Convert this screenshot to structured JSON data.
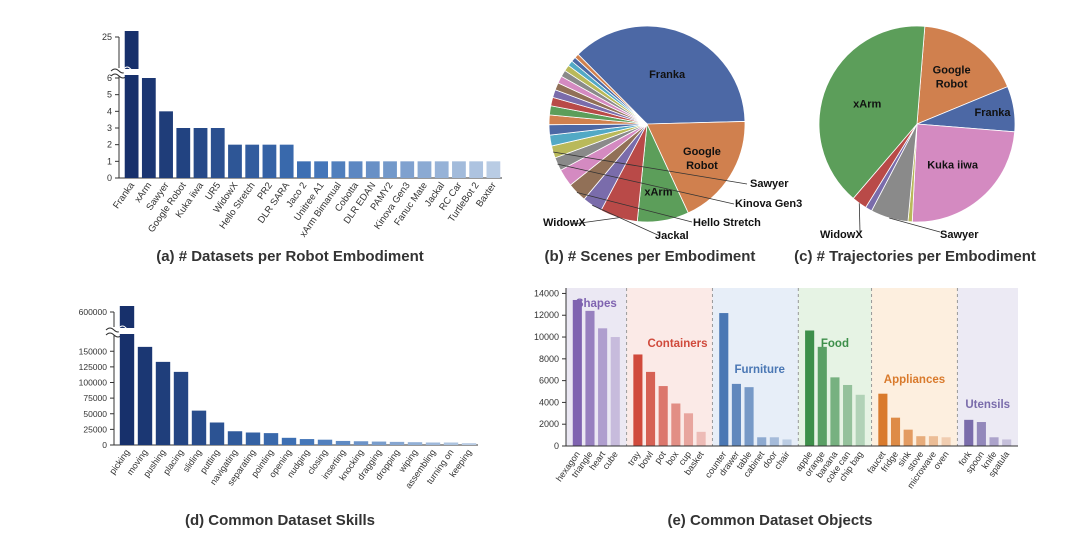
{
  "chart_data": [
    {
      "id": "a",
      "type": "bar",
      "title": "(a) # Datasets per Robot Embodiment",
      "categories": [
        "Franka",
        "xArm",
        "Sawyer",
        "Google Robot",
        "Kuka iiwa",
        "UR5",
        "WidowX",
        "Hello Stretch",
        "PR2",
        "DLR SARA",
        "Jaco 2",
        "Unitree A1",
        "xArm Bimanual",
        "Cobotta",
        "DLR EDAN",
        "PAMY2",
        "Kinova Gen3",
        "Fanuc Mate",
        "Jackal",
        "RC Car",
        "TurtleBot 2",
        "Baxter"
      ],
      "values": [
        25,
        6,
        4,
        3,
        3,
        3,
        2,
        2,
        2,
        2,
        1,
        1,
        1,
        1,
        1,
        1,
        1,
        1,
        1,
        1,
        1,
        1
      ],
      "yticks": [
        "0",
        "1",
        "2",
        "3",
        "4",
        "5",
        "6",
        "25"
      ],
      "axis_break": {
        "lower_max": 6,
        "upper_tick": 25
      },
      "ylim": [
        0,
        25
      ]
    },
    {
      "id": "b",
      "type": "pie",
      "title": "(b) # Scenes per Embodiment",
      "slices": [
        {
          "label": "Franka",
          "value": 37,
          "color": "#4c68a5",
          "labeled": true
        },
        {
          "label": "Google Robot",
          "value": 18.5,
          "color": "#d0804e",
          "labeled": true
        },
        {
          "label": "xArm",
          "value": 8.5,
          "color": "#5c9e5a",
          "labeled": true
        },
        {
          "label": "WidowX",
          "value": 6.2,
          "color": "#b94a48",
          "labeled": true
        },
        {
          "label": "Jackal",
          "value": 3.3,
          "color": "#7a6cab",
          "labeled": true
        },
        {
          "label": "Hello Stretch",
          "value": 3.2,
          "color": "#917057",
          "labeled": true
        },
        {
          "label": "",
          "value": 2.9,
          "color": "#d48ac1",
          "labeled": false
        },
        {
          "label": "Kinova Gen3",
          "value": 2.2,
          "color": "#8a8a8a",
          "labeled": true
        },
        {
          "label": "Sawyer",
          "value": 2.0,
          "color": "#b9b95a",
          "labeled": true
        },
        {
          "label": "",
          "value": 1.8,
          "color": "#52a9c5",
          "labeled": false
        },
        {
          "label": "",
          "value": 1.7,
          "color": "#4c68a5",
          "labeled": false
        },
        {
          "label": "",
          "value": 1.6,
          "color": "#d0804e",
          "labeled": false
        },
        {
          "label": "",
          "value": 1.5,
          "color": "#5c9e5a",
          "labeled": false
        },
        {
          "label": "",
          "value": 1.4,
          "color": "#b94a48",
          "labeled": false
        },
        {
          "label": "",
          "value": 1.3,
          "color": "#7a6cab",
          "labeled": false
        },
        {
          "label": "",
          "value": 1.2,
          "color": "#917057",
          "labeled": false
        },
        {
          "label": "",
          "value": 1.2,
          "color": "#d48ac1",
          "labeled": false
        },
        {
          "label": "",
          "value": 1.1,
          "color": "#8a8a8a",
          "labeled": false
        },
        {
          "label": "",
          "value": 1.0,
          "color": "#b9b95a",
          "labeled": false
        },
        {
          "label": "",
          "value": 0.9,
          "color": "#52a9c5",
          "labeled": false
        },
        {
          "label": "",
          "value": 0.8,
          "color": "#4c68a5",
          "labeled": false
        },
        {
          "label": "",
          "value": 0.7,
          "color": "#d0804e",
          "labeled": false
        }
      ]
    },
    {
      "id": "c",
      "type": "pie",
      "title": "(c) # Trajectories per Embodiment",
      "slices": [
        {
          "label": "Google Robot",
          "value": 17.5,
          "color": "#d0804e"
        },
        {
          "label": "Franka",
          "value": 7.5,
          "color": "#4c68a5"
        },
        {
          "label": "Kuka iiwa",
          "value": 24.5,
          "color": "#d48ac1"
        },
        {
          "label": "",
          "value": 0.7,
          "color": "#b9b95a"
        },
        {
          "label": "Sawyer",
          "value": 6.2,
          "color": "#8a8a8a"
        },
        {
          "label": "",
          "value": 1.1,
          "color": "#7a6cab"
        },
        {
          "label": "WidowX",
          "value": 2.5,
          "color": "#b94a48"
        },
        {
          "label": "xArm",
          "value": 40,
          "color": "#5c9e5a"
        }
      ]
    },
    {
      "id": "d",
      "type": "bar",
      "title": "(d) Common Dataset Skills",
      "categories": [
        "picking",
        "moving",
        "pushing",
        "placing",
        "sliding",
        "putting",
        "navigating",
        "separating",
        "pointing",
        "opening",
        "nudging",
        "closing",
        "inserting",
        "knocking",
        "dragging",
        "dropping",
        "wiping",
        "assembling",
        "turning on",
        "keeping"
      ],
      "values": [
        600000,
        157000,
        133000,
        117000,
        55000,
        36000,
        22000,
        20000,
        19000,
        11500,
        9500,
        8500,
        6500,
        6000,
        5500,
        5000,
        4500,
        4000,
        4000,
        3000
      ],
      "yticks": [
        "0",
        "25000",
        "50000",
        "75000",
        "100000",
        "125000",
        "150000",
        "600000"
      ],
      "axis_break": {
        "lower_max": 160000,
        "upper_tick": 600000
      }
    },
    {
      "id": "e",
      "type": "bar",
      "title": "(e) Common Dataset Objects",
      "yticks": [
        "0",
        "2000",
        "4000",
        "6000",
        "8000",
        "10000",
        "12000",
        "14000"
      ],
      "ylim": [
        0,
        14500
      ],
      "groups": [
        {
          "name": "Shapes",
          "color": "#7f63b0",
          "bg": "#ebe8f3",
          "items": [
            {
              "label": "hexagon",
              "value": 13400
            },
            {
              "label": "triangle",
              "value": 12400
            },
            {
              "label": "heart",
              "value": 10800
            },
            {
              "label": "cube",
              "value": 10000
            }
          ]
        },
        {
          "name": "Containers",
          "color": "#d04a3c",
          "bg": "#fbeae7",
          "items": [
            {
              "label": "tray",
              "value": 8400
            },
            {
              "label": "bowl",
              "value": 6800
            },
            {
              "label": "pot",
              "value": 5500
            },
            {
              "label": "box",
              "value": 3900
            },
            {
              "label": "cup",
              "value": 3000
            },
            {
              "label": "basket",
              "value": 1300
            }
          ]
        },
        {
          "name": "Furniture",
          "color": "#4a77b4",
          "bg": "#e7eef8",
          "items": [
            {
              "label": "counter",
              "value": 12200
            },
            {
              "label": "drawer",
              "value": 5700
            },
            {
              "label": "table",
              "value": 5400
            },
            {
              "label": "cabinet",
              "value": 800
            },
            {
              "label": "door",
              "value": 800
            },
            {
              "label": "chair",
              "value": 600
            }
          ]
        },
        {
          "name": "Food",
          "color": "#3d8f4a",
          "bg": "#e6f3e4",
          "items": [
            {
              "label": "apple",
              "value": 10600
            },
            {
              "label": "orange",
              "value": 9100
            },
            {
              "label": "banana",
              "value": 6300
            },
            {
              "label": "coke can",
              "value": 5600
            },
            {
              "label": "chip bag",
              "value": 4700
            }
          ]
        },
        {
          "name": "Appliances",
          "color": "#d97a2c",
          "bg": "#fdefdf",
          "items": [
            {
              "label": "faucet",
              "value": 4800
            },
            {
              "label": "fridge",
              "value": 2600
            },
            {
              "label": "sink",
              "value": 1500
            },
            {
              "label": "stove",
              "value": 900
            },
            {
              "label": "microwave",
              "value": 900
            },
            {
              "label": "oven",
              "value": 800
            }
          ]
        },
        {
          "name": "Utensils",
          "color": "#7a6cab",
          "bg": "#eceaf4",
          "items": [
            {
              "label": "fork",
              "value": 2400
            },
            {
              "label": "spoon",
              "value": 2200
            },
            {
              "label": "knife",
              "value": 800
            },
            {
              "label": "spatula",
              "value": 600
            }
          ]
        }
      ]
    }
  ]
}
